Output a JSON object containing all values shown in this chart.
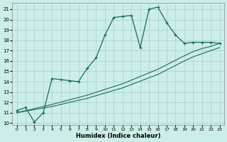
{
  "xlabel": "Humidex (Indice chaleur)",
  "ylabel": "",
  "bg_color": "#cceee8",
  "grid_color": "#aad4ce",
  "line_color": "#1a6b5a",
  "xlim": [
    -0.5,
    23.5
  ],
  "ylim": [
    9.8,
    21.6
  ],
  "yticks": [
    10,
    11,
    12,
    13,
    14,
    15,
    16,
    17,
    18,
    19,
    20,
    21
  ],
  "xticks": [
    0,
    1,
    2,
    3,
    4,
    5,
    6,
    7,
    8,
    9,
    10,
    11,
    12,
    13,
    14,
    15,
    16,
    17,
    18,
    19,
    20,
    21,
    22,
    23
  ],
  "line1_x": [
    0,
    1,
    2,
    3,
    4,
    5,
    6,
    7,
    8,
    9,
    10,
    11,
    12,
    13,
    14,
    15,
    16,
    17,
    18,
    19,
    20,
    21,
    22,
    23
  ],
  "line1_y": [
    11.2,
    11.5,
    10.1,
    11.0,
    14.3,
    14.2,
    14.1,
    14.0,
    15.3,
    16.3,
    18.5,
    20.2,
    20.3,
    20.4,
    17.3,
    21.0,
    21.2,
    19.7,
    18.5,
    17.7,
    17.8,
    17.8,
    17.8,
    17.7
  ],
  "line2_x": [
    0,
    4,
    8,
    12,
    16,
    19,
    20,
    21,
    22,
    23
  ],
  "line2_y": [
    11.0,
    11.8,
    12.7,
    13.8,
    15.2,
    16.5,
    16.9,
    17.2,
    17.4,
    17.7
  ],
  "line3_x": [
    0,
    4,
    8,
    12,
    16,
    19,
    20,
    21,
    22,
    23
  ],
  "line3_y": [
    11.0,
    11.6,
    12.4,
    13.4,
    14.7,
    16.0,
    16.4,
    16.7,
    17.0,
    17.3
  ],
  "marker": "+"
}
